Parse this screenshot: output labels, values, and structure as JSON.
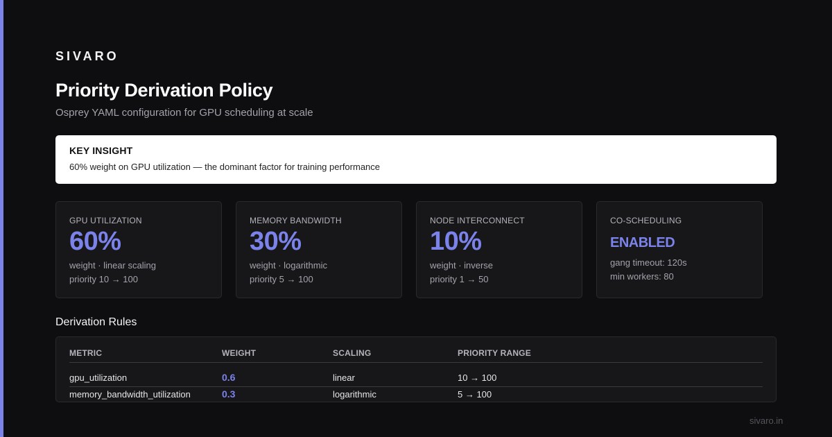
{
  "brand": "SIVARO",
  "title": "Priority Derivation Policy",
  "subtitle": "Osprey YAML configuration for GPU scheduling at scale",
  "insight": {
    "label": "KEY INSIGHT",
    "text": "60% weight on GPU utilization — the dominant factor for training performance"
  },
  "cards": [
    {
      "label": "GPU UTILIZATION",
      "value": "60%",
      "line1": "weight · linear scaling",
      "line2": "priority 10 → 100"
    },
    {
      "label": "MEMORY BANDWIDTH",
      "value": "30%",
      "line1": "weight · logarithmic",
      "line2": "priority 5 → 100"
    },
    {
      "label": "NODE INTERCONNECT",
      "value": "10%",
      "line1": "weight · inverse",
      "line2": "priority 1 → 50"
    },
    {
      "label": "CO-SCHEDULING",
      "value": "ENABLED",
      "line1": "gang timeout: 120s",
      "line2": "min workers: 80"
    }
  ],
  "rules": {
    "title": "Derivation Rules",
    "headers": [
      "METRIC",
      "WEIGHT",
      "SCALING",
      "PRIORITY RANGE"
    ],
    "rows": [
      {
        "metric": "gpu_utilization",
        "weight": "0.6",
        "scaling": "linear",
        "range": "10 → 100"
      },
      {
        "metric": "memory_bandwidth_utilization",
        "weight": "0.3",
        "scaling": "logarithmic",
        "range": "5 → 100"
      }
    ]
  },
  "footer": "sivaro.in",
  "colors": {
    "accent": "#7b83eb",
    "background": "#0e0e10",
    "card": "#17171a"
  }
}
